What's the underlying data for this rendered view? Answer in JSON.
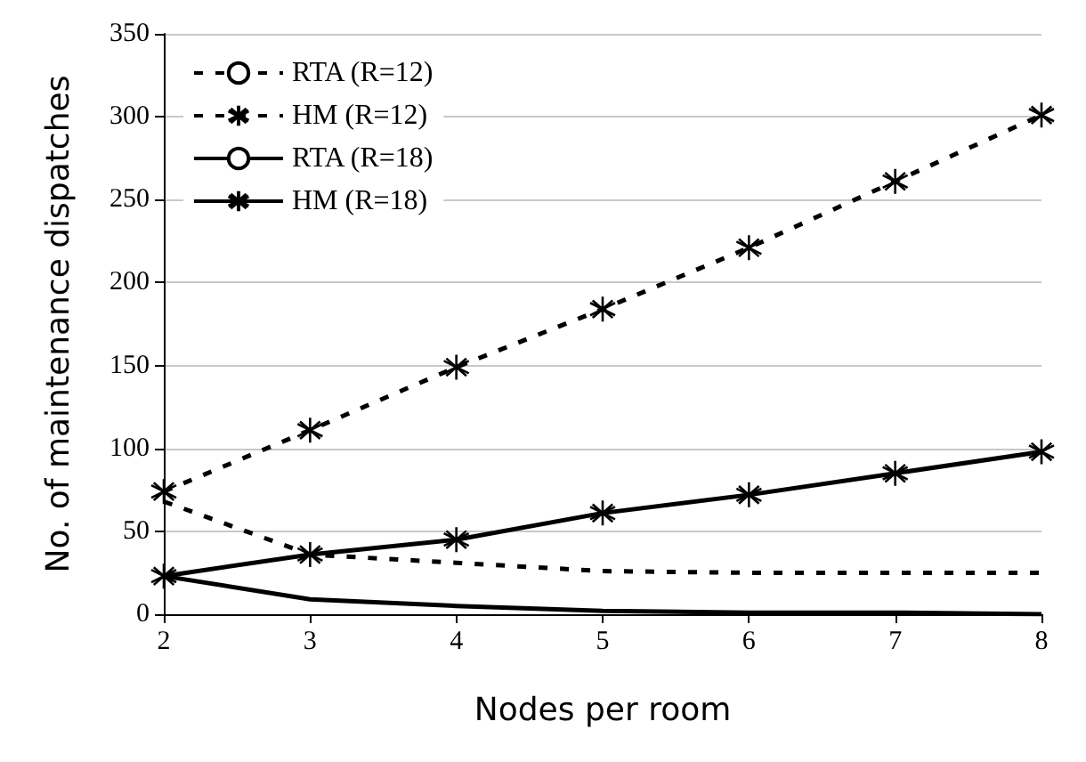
{
  "chart_data": {
    "type": "line",
    "xlabel": "Nodes per room",
    "ylabel": "No. of maintenance dispatches",
    "x": [
      2,
      3,
      4,
      5,
      6,
      7,
      8
    ],
    "xlim": [
      2,
      8
    ],
    "xticks": [
      2,
      3,
      4,
      5,
      6,
      7,
      8
    ],
    "ylim": [
      0,
      350
    ],
    "yticks": [
      0,
      50,
      100,
      150,
      200,
      250,
      300,
      350
    ],
    "grid": "y",
    "legend": "top left",
    "series": [
      {
        "name": "RTA (R=12)",
        "color": "#000000",
        "line_style": "dashed",
        "marker": "none",
        "values": [
          68,
          36,
          31,
          26,
          25,
          25,
          25
        ]
      },
      {
        "name": "HM (R=12)",
        "color": "#000000",
        "line_style": "dashed",
        "marker": "cross",
        "values": [
          74,
          111,
          149,
          184,
          221,
          261,
          301
        ]
      },
      {
        "name": "RTA (R=18)",
        "color": "#000000",
        "line_style": "solid",
        "marker": "none",
        "values": [
          23,
          9,
          5,
          2,
          1,
          1,
          0
        ]
      },
      {
        "name": "HM (R=18)",
        "color": "#000000",
        "line_style": "solid",
        "marker": "cross",
        "values": [
          23,
          36,
          45,
          61,
          72,
          85,
          98
        ]
      }
    ]
  }
}
